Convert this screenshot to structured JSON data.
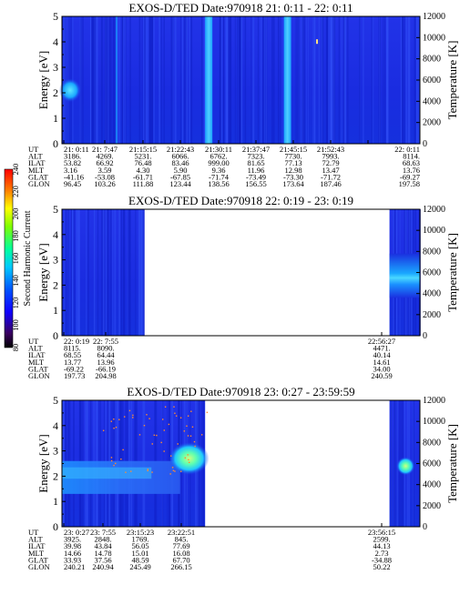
{
  "chart_data": [
    {
      "type": "heatmap",
      "title": "EXOS-D/TED    Date:970918  21: 0:11 - 22: 0:11",
      "ylabel": "Energy [eV]",
      "y2label": "Temperature [K]",
      "ylim": [
        0,
        5
      ],
      "y2lim": [
        0,
        12000
      ],
      "yticks": [
        "0",
        "1",
        "2",
        "3",
        "4",
        "5"
      ],
      "y2ticks": [
        "0",
        "2000",
        "4000",
        "6000",
        "8000",
        "10000",
        "12000"
      ],
      "data_span": [
        0,
        1
      ],
      "bright_stripes": [
        0.41,
        0.63
      ],
      "row_labels": [
        "UT",
        "ALT",
        "ILAT",
        "MLT",
        "GLAT",
        "GLON"
      ],
      "columns": [
        [
          "21: 0:11",
          "3186.",
          "53.82",
          "3.16",
          "-41.16",
          "96.45"
        ],
        [
          "21: 7:47",
          "4269.",
          "66.92",
          "3.59",
          "-53.08",
          "103.26"
        ],
        [
          "21:15:15",
          "5231.",
          "76.48",
          "4.30",
          "-61.71",
          "111.88"
        ],
        [
          "21:22:43",
          "6066.",
          "83.46",
          "5.90",
          "-67.85",
          "123.44"
        ],
        [
          "21:30:11",
          "6762.",
          "999.00",
          "9.36",
          "-71.74",
          "138.56"
        ],
        [
          "21:37:47",
          "7323.",
          "81.65",
          "11.96",
          "-73.49",
          "156.55"
        ],
        [
          "21:45:15",
          "7730.",
          "77.13",
          "12.98",
          "-73.30",
          "173.64"
        ],
        [
          "21:52:43",
          "7993.",
          "72.79",
          "13.47",
          "-71.72",
          "187.46"
        ],
        [
          "22: 0:11",
          "8114.",
          "68.63",
          "13.76",
          "-69.27",
          "197.58"
        ]
      ]
    },
    {
      "type": "heatmap",
      "title": "EXOS-D/TED    Date:970918  22: 0:19 - 23: 0:19",
      "ylabel": "Energy [eV]",
      "y2label": "Temperature [K]",
      "ylim": [
        0,
        5
      ],
      "y2lim": [
        0,
        12000
      ],
      "yticks": [
        "0",
        "1",
        "2",
        "3",
        "4",
        "5"
      ],
      "y2ticks": [
        "0",
        "2000",
        "4000",
        "6000",
        "8000",
        "10000",
        "12000"
      ],
      "data_span": [
        0,
        0.23
      ],
      "data_span2": [
        0.915,
        1
      ],
      "row_labels": [
        "UT",
        "ALT",
        "ILAT",
        "MLT",
        "GLAT",
        "GLON"
      ],
      "columns": [
        [
          "22: 0:19",
          "8115.",
          "68.55",
          "13.77",
          "-69.22",
          "197.73"
        ],
        [
          "22: 7:55",
          "8090.",
          "64.44",
          "13.96",
          "-66.19",
          "204.98"
        ],
        [
          "22:56:27",
          "4471.",
          "40.14",
          "14.61",
          "34.00",
          "240.59"
        ]
      ],
      "colorbar": {
        "label": "Second Harmonic Current",
        "ticks": [
          "80",
          "100",
          "120",
          "140",
          "160",
          "180",
          "200",
          "220",
          "240"
        ]
      }
    },
    {
      "type": "heatmap",
      "title": "EXOS-D/TED    Date:970918  23: 0:27 - 23:59:59",
      "ylabel": "Energy [eV]",
      "y2label": "Temperature [K]",
      "ylim": [
        0,
        5
      ],
      "y2lim": [
        0,
        12000
      ],
      "yticks": [
        "0",
        "1",
        "2",
        "3",
        "4",
        "5"
      ],
      "y2ticks": [
        "0",
        "2000",
        "4000",
        "6000",
        "8000",
        "10000",
        "12000"
      ],
      "data_span": [
        0,
        0.4
      ],
      "data_span2": [
        0.915,
        1
      ],
      "row_labels": [
        "UT",
        "ALT",
        "ILAT",
        "MLT",
        "GLAT",
        "GLON"
      ],
      "columns": [
        [
          "23: 0:27",
          "3925.",
          "39.98",
          "14.66",
          "33.93",
          "240.21"
        ],
        [
          "23: 7:55",
          "2848.",
          "43.84",
          "14.78",
          "37.56",
          "240.94"
        ],
        [
          "23:15:23",
          "1769.",
          "56.05",
          "15.01",
          "48.59",
          "245.49"
        ],
        [
          "23:22:51",
          "845.",
          "77.69",
          "16.08",
          "67.70",
          "266.15"
        ],
        [
          "23:56:15",
          "2599.",
          "44.13",
          "2.73",
          "-34.88",
          "50.22"
        ]
      ]
    }
  ]
}
